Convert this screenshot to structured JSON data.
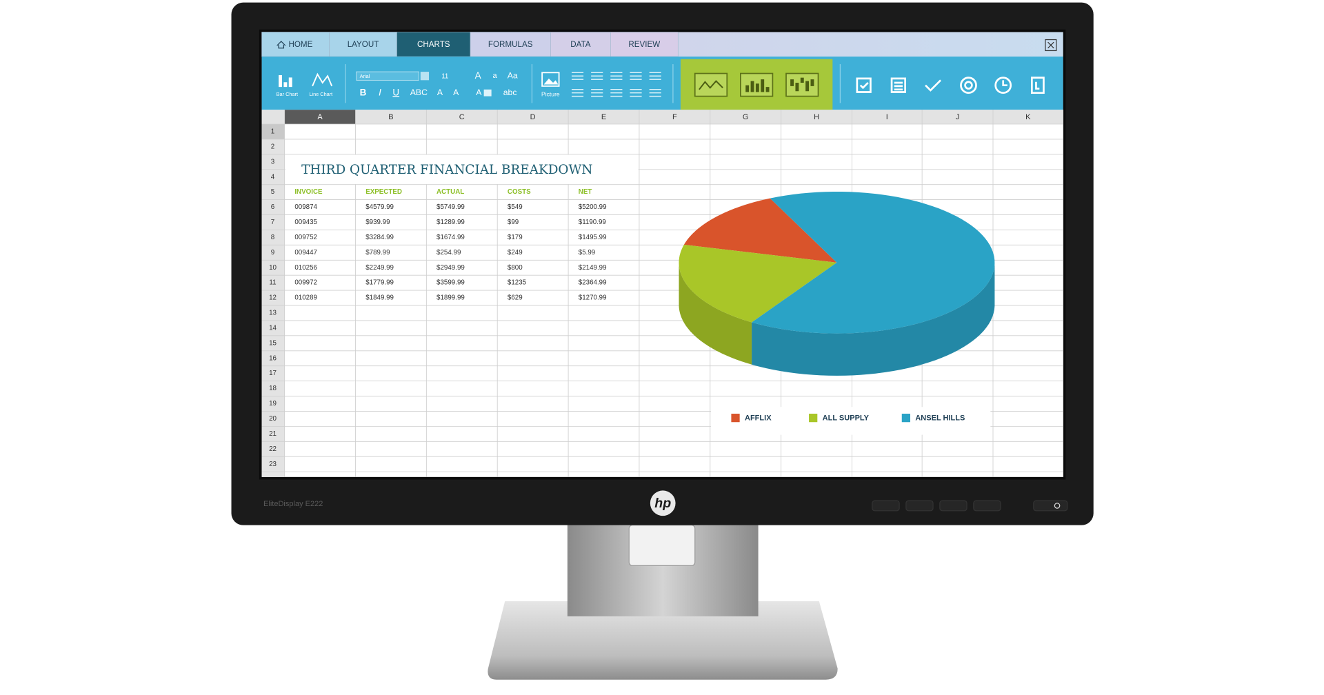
{
  "monitor": {
    "model": "EliteDisplay E222",
    "logo": "hp"
  },
  "tabs": [
    "HOME",
    "LAYOUT",
    "CHARTS",
    "FORMULAS",
    "DATA",
    "REVIEW"
  ],
  "ribbon": {
    "bar_chart": "Bar Chart",
    "line_chart": "Line Chart",
    "font": "Arial",
    "font_size": "11",
    "grow": "A",
    "shrink": "a",
    "case": "Aa",
    "bold": "B",
    "italic": "I",
    "underline": "U",
    "strike": "ABC",
    "lowercase": "abc",
    "picture": "Picture"
  },
  "columns": [
    "A",
    "B",
    "C",
    "D",
    "E",
    "F",
    "G",
    "H",
    "I",
    "J",
    "K"
  ],
  "rows": [
    "1",
    "2",
    "3",
    "4",
    "5",
    "6",
    "7",
    "8",
    "9",
    "10",
    "11",
    "12",
    "13",
    "14",
    "15",
    "16",
    "17",
    "18",
    "19",
    "20",
    "21",
    "22",
    "23"
  ],
  "sheet": {
    "title": "THIRD QUARTER FINANCIAL BREAKDOWN",
    "header": [
      "INVOICE",
      "EXPECTED",
      "ACTUAL",
      "COSTS",
      "NET"
    ],
    "rows": [
      [
        "009874",
        "$4579.99",
        "$5749.99",
        "$549",
        "$5200.99"
      ],
      [
        "009435",
        "$939.99",
        "$1289.99",
        "$99",
        "$1190.99"
      ],
      [
        "009752",
        "$3284.99",
        "$1674.99",
        "$179",
        "$1495.99"
      ],
      [
        "009447",
        "$789.99",
        "$254.99",
        "$249",
        "$5.99"
      ],
      [
        "010256",
        "$2249.99",
        "$2949.99",
        "$800",
        "$2149.99"
      ],
      [
        "009972",
        "$1779.99",
        "$3599.99",
        "$1235",
        "$2364.99"
      ],
      [
        "010289",
        "$1849.99",
        "$1899.99",
        "$629",
        "$1270.99"
      ]
    ]
  },
  "chart_data": {
    "type": "pie",
    "categories": [
      "AFFLIX",
      "ALL SUPPLY",
      "ANSEL HILLS"
    ],
    "values": [
      14,
      20,
      66
    ],
    "colors": [
      "#d9542b",
      "#a9c628",
      "#2aa3c6"
    ]
  }
}
